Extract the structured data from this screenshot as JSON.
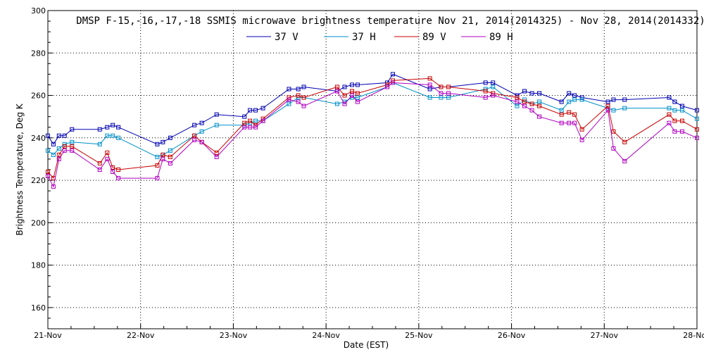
{
  "chart_data": {
    "type": "line",
    "title": "DMSP F-15,-16,-17,-18 SSMIS microwave brightness temperature Nov 21, 2014(2014325) - Nov 28, 2014(2014332)",
    "xlabel": "Date (EST)",
    "ylabel": "Brightness Temperature, Deg K",
    "xlim": [
      0,
      7
    ],
    "ylim": [
      150,
      300
    ],
    "x_ticks": [
      {
        "value": 0,
        "label": "21-Nov"
      },
      {
        "value": 1,
        "label": "22-Nov"
      },
      {
        "value": 2,
        "label": "23-Nov"
      },
      {
        "value": 3,
        "label": "24-Nov"
      },
      {
        "value": 4,
        "label": "25-Nov"
      },
      {
        "value": 5,
        "label": "26-Nov"
      },
      {
        "value": 6,
        "label": "27-Nov"
      },
      {
        "value": 7,
        "label": "28-Nov"
      }
    ],
    "y_ticks": [
      160,
      180,
      200,
      220,
      240,
      260,
      280,
      300
    ],
    "grid": true,
    "series": [
      {
        "name": "37 V",
        "color": "#0000b0",
        "points": [
          [
            0.0,
            241
          ],
          [
            0.06,
            237
          ],
          [
            0.12,
            241
          ],
          [
            0.18,
            241
          ],
          [
            0.26,
            244
          ],
          [
            0.56,
            244
          ],
          [
            0.64,
            245
          ],
          [
            0.7,
            246
          ],
          [
            0.76,
            245
          ],
          [
            1.18,
            237
          ],
          [
            1.24,
            238
          ],
          [
            1.32,
            240
          ],
          [
            1.58,
            246
          ],
          [
            1.66,
            247
          ],
          [
            1.82,
            251
          ],
          [
            2.12,
            250
          ],
          [
            2.18,
            253
          ],
          [
            2.24,
            253
          ],
          [
            2.32,
            254
          ],
          [
            2.6,
            263
          ],
          [
            2.7,
            263
          ],
          [
            2.76,
            264
          ],
          [
            3.12,
            262
          ],
          [
            3.2,
            264
          ],
          [
            3.28,
            265
          ],
          [
            3.34,
            265
          ],
          [
            3.66,
            266
          ],
          [
            3.72,
            270
          ],
          [
            4.12,
            263
          ],
          [
            4.24,
            264
          ],
          [
            4.32,
            264
          ],
          [
            4.72,
            266
          ],
          [
            4.8,
            266
          ],
          [
            5.06,
            260
          ],
          [
            5.14,
            262
          ],
          [
            5.22,
            261
          ],
          [
            5.3,
            261
          ],
          [
            5.54,
            257
          ],
          [
            5.62,
            261
          ],
          [
            5.68,
            260
          ],
          [
            5.76,
            259
          ],
          [
            6.04,
            257
          ],
          [
            6.1,
            258
          ],
          [
            6.22,
            258
          ],
          [
            6.7,
            259
          ],
          [
            6.76,
            257
          ],
          [
            6.84,
            255
          ],
          [
            7.0,
            253
          ]
        ]
      },
      {
        "name": "37 H",
        "color": "#0090c8",
        "points": [
          [
            0.0,
            234
          ],
          [
            0.06,
            232
          ],
          [
            0.12,
            235
          ],
          [
            0.18,
            237
          ],
          [
            0.26,
            238
          ],
          [
            0.56,
            237
          ],
          [
            0.64,
            241
          ],
          [
            0.7,
            241
          ],
          [
            0.76,
            240
          ],
          [
            1.18,
            231
          ],
          [
            1.24,
            232
          ],
          [
            1.32,
            234
          ],
          [
            1.58,
            241
          ],
          [
            1.66,
            243
          ],
          [
            1.82,
            246
          ],
          [
            2.12,
            246
          ],
          [
            2.18,
            247
          ],
          [
            2.24,
            248
          ],
          [
            2.32,
            248
          ],
          [
            2.6,
            256
          ],
          [
            2.7,
            259
          ],
          [
            2.76,
            259
          ],
          [
            3.12,
            256
          ],
          [
            3.2,
            257
          ],
          [
            3.28,
            259
          ],
          [
            3.34,
            259
          ],
          [
            3.66,
            264
          ],
          [
            3.72,
            266
          ],
          [
            4.12,
            259
          ],
          [
            4.24,
            259
          ],
          [
            4.32,
            259
          ],
          [
            4.72,
            263
          ],
          [
            4.8,
            264
          ],
          [
            5.06,
            255
          ],
          [
            5.14,
            258
          ],
          [
            5.22,
            256
          ],
          [
            5.3,
            257
          ],
          [
            5.54,
            253
          ],
          [
            5.62,
            257
          ],
          [
            5.68,
            258
          ],
          [
            5.76,
            258
          ],
          [
            6.04,
            254
          ],
          [
            6.1,
            253
          ],
          [
            6.22,
            254
          ],
          [
            6.7,
            254
          ],
          [
            6.76,
            253
          ],
          [
            6.84,
            253
          ],
          [
            7.0,
            249
          ]
        ]
      },
      {
        "name": "89 V",
        "color": "#c80000",
        "points": [
          [
            0.0,
            224
          ],
          [
            0.06,
            221
          ],
          [
            0.12,
            232
          ],
          [
            0.18,
            236
          ],
          [
            0.26,
            236
          ],
          [
            0.56,
            228
          ],
          [
            0.64,
            233
          ],
          [
            0.7,
            226
          ],
          [
            0.76,
            225
          ],
          [
            1.18,
            227
          ],
          [
            1.24,
            232
          ],
          [
            1.32,
            231
          ],
          [
            1.58,
            241
          ],
          [
            1.66,
            238
          ],
          [
            1.82,
            233
          ],
          [
            2.12,
            247
          ],
          [
            2.18,
            248
          ],
          [
            2.24,
            246
          ],
          [
            2.32,
            249
          ],
          [
            2.6,
            259
          ],
          [
            2.7,
            260
          ],
          [
            2.76,
            259
          ],
          [
            3.12,
            264
          ],
          [
            3.2,
            260
          ],
          [
            3.28,
            262
          ],
          [
            3.34,
            261
          ],
          [
            3.66,
            265
          ],
          [
            3.72,
            267
          ],
          [
            4.12,
            268
          ],
          [
            4.24,
            264
          ],
          [
            4.32,
            264
          ],
          [
            4.72,
            262
          ],
          [
            4.8,
            261
          ],
          [
            5.06,
            259
          ],
          [
            5.14,
            257
          ],
          [
            5.22,
            256
          ],
          [
            5.3,
            255
          ],
          [
            5.54,
            251
          ],
          [
            5.62,
            252
          ],
          [
            5.68,
            251
          ],
          [
            5.76,
            244
          ],
          [
            6.04,
            255
          ],
          [
            6.1,
            243
          ],
          [
            6.22,
            238
          ],
          [
            6.7,
            251
          ],
          [
            6.76,
            248
          ],
          [
            6.84,
            248
          ],
          [
            7.0,
            244
          ]
        ]
      },
      {
        "name": "89 H",
        "color": "#b000c0",
        "points": [
          [
            0.0,
            222
          ],
          [
            0.06,
            217
          ],
          [
            0.12,
            230
          ],
          [
            0.18,
            234
          ],
          [
            0.26,
            234
          ],
          [
            0.56,
            225
          ],
          [
            0.64,
            230
          ],
          [
            0.7,
            224
          ],
          [
            0.76,
            221
          ],
          [
            1.18,
            221
          ],
          [
            1.24,
            230
          ],
          [
            1.32,
            228
          ],
          [
            1.58,
            239
          ],
          [
            1.66,
            238
          ],
          [
            1.82,
            231
          ],
          [
            2.12,
            245
          ],
          [
            2.18,
            245
          ],
          [
            2.24,
            245
          ],
          [
            2.32,
            248
          ],
          [
            2.6,
            258
          ],
          [
            2.7,
            257
          ],
          [
            2.76,
            255
          ],
          [
            3.12,
            262
          ],
          [
            3.2,
            256
          ],
          [
            3.28,
            260
          ],
          [
            3.34,
            257
          ],
          [
            3.66,
            264
          ],
          [
            3.72,
            266
          ],
          [
            4.12,
            265
          ],
          [
            4.24,
            261
          ],
          [
            4.32,
            261
          ],
          [
            4.72,
            259
          ],
          [
            4.8,
            260
          ],
          [
            5.06,
            257
          ],
          [
            5.14,
            255
          ],
          [
            5.22,
            253
          ],
          [
            5.3,
            250
          ],
          [
            5.54,
            247
          ],
          [
            5.62,
            247
          ],
          [
            5.68,
            247
          ],
          [
            5.76,
            239
          ],
          [
            6.04,
            253
          ],
          [
            6.1,
            235
          ],
          [
            6.22,
            229
          ],
          [
            6.7,
            247
          ],
          [
            6.76,
            243
          ],
          [
            6.84,
            243
          ],
          [
            7.0,
            240
          ]
        ]
      }
    ],
    "legend": [
      {
        "label": "37 V",
        "color": "#0000b0"
      },
      {
        "label": "37 H",
        "color": "#0090c8"
      },
      {
        "label": "89 V",
        "color": "#c80000"
      },
      {
        "label": "89 H",
        "color": "#b000c0"
      }
    ]
  }
}
